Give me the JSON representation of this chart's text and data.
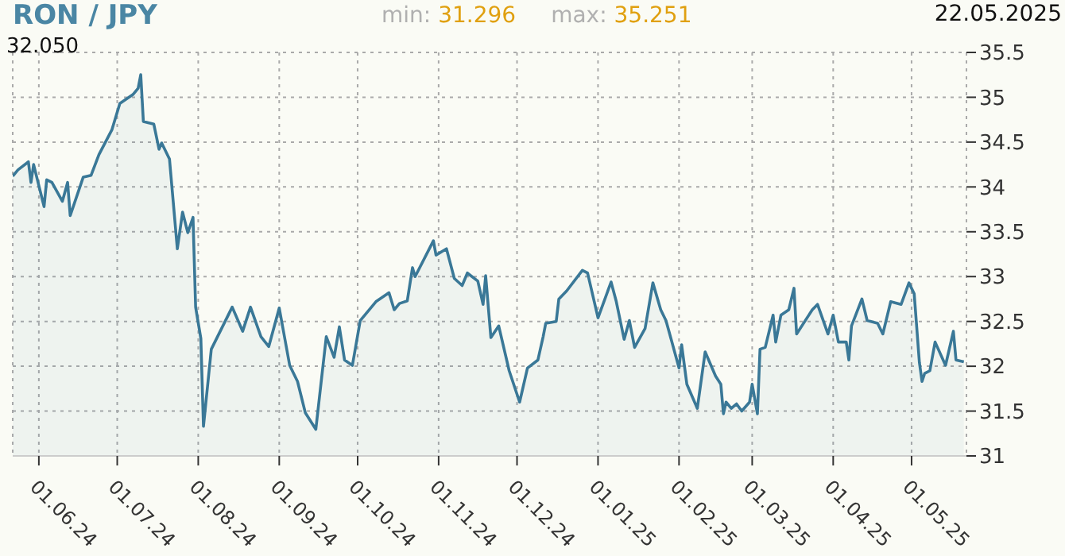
{
  "chart_data": {
    "type": "area",
    "title": "RON / JPY",
    "annotations": [
      "min: 31.296",
      "max: 35.251",
      "22.05.2025",
      "32.050"
    ],
    "x": [
      "2024-05-22",
      "2024-05-24",
      "2024-05-28",
      "2024-05-29",
      "2024-05-30",
      "2024-06-03",
      "2024-06-04",
      "2024-06-06",
      "2024-06-10",
      "2024-06-12",
      "2024-06-13",
      "2024-06-18",
      "2024-06-21",
      "2024-06-24",
      "2024-06-29",
      "2024-07-02",
      "2024-07-07",
      "2024-07-09",
      "2024-07-10",
      "2024-07-11",
      "2024-07-15",
      "2024-07-17",
      "2024-07-18",
      "2024-07-21",
      "2024-07-24",
      "2024-07-26",
      "2024-07-28",
      "2024-07-30",
      "2024-07-31",
      "2024-08-02",
      "2024-08-03",
      "2024-08-06",
      "2024-08-14",
      "2024-08-18",
      "2024-08-21",
      "2024-08-25",
      "2024-08-28",
      "2024-09-01",
      "2024-09-05",
      "2024-09-08",
      "2024-09-11",
      "2024-09-15",
      "2024-09-19",
      "2024-09-22",
      "2024-09-24",
      "2024-09-26",
      "2024-09-29",
      "2024-10-02",
      "2024-10-08",
      "2024-10-13",
      "2024-10-15",
      "2024-10-17",
      "2024-10-20",
      "2024-10-22",
      "2024-10-23",
      "2024-10-30",
      "2024-10-31",
      "2024-11-04",
      "2024-11-07",
      "2024-11-10",
      "2024-11-12",
      "2024-11-16",
      "2024-11-18",
      "2024-11-19",
      "2024-11-21",
      "2024-11-24",
      "2024-11-28",
      "2024-12-02",
      "2024-12-05",
      "2024-12-09",
      "2024-12-11",
      "2024-12-12",
      "2024-12-16",
      "2024-12-17",
      "2024-12-20",
      "2024-12-26",
      "2024-12-28",
      "2025-01-01",
      "2025-01-06",
      "2025-01-08",
      "2025-01-11",
      "2025-01-13",
      "2025-01-15",
      "2025-01-19",
      "2025-01-22",
      "2025-01-25",
      "2025-01-27",
      "2025-01-29",
      "2025-02-01",
      "2025-02-02",
      "2025-02-04",
      "2025-02-08",
      "2025-02-11",
      "2025-02-15",
      "2025-02-17",
      "2025-02-18",
      "2025-02-19",
      "2025-02-21",
      "2025-02-23",
      "2025-02-25",
      "2025-02-28",
      "2025-03-01",
      "2025-03-03",
      "2025-03-04",
      "2025-03-06",
      "2025-03-09",
      "2025-03-10",
      "2025-03-12",
      "2025-03-15",
      "2025-03-17",
      "2025-03-18",
      "2025-03-24",
      "2025-03-26",
      "2025-03-30",
      "2025-04-01",
      "2025-04-03",
      "2025-04-06",
      "2025-04-07",
      "2025-04-08",
      "2025-04-12",
      "2025-04-14",
      "2025-04-18",
      "2025-04-20",
      "2025-04-23",
      "2025-04-27",
      "2025-04-30",
      "2025-05-02",
      "2025-05-04",
      "2025-05-05",
      "2025-05-06",
      "2025-05-08",
      "2025-05-10",
      "2025-05-14",
      "2025-05-17",
      "2025-05-18",
      "2025-05-21"
    ],
    "series": [
      {
        "color": "#3a7897",
        "values": [
          34.12,
          34.19,
          34.28,
          34.05,
          34.25,
          33.78,
          34.08,
          34.05,
          33.84,
          34.05,
          33.68,
          34.11,
          34.13,
          34.36,
          34.64,
          34.93,
          35.03,
          35.1,
          35.251,
          34.73,
          34.7,
          34.42,
          34.49,
          34.31,
          33.31,
          33.72,
          33.49,
          33.66,
          32.66,
          32.31,
          31.33,
          32.19,
          32.66,
          32.39,
          32.66,
          32.33,
          32.22,
          32.65,
          32.01,
          31.83,
          31.48,
          31.296,
          32.33,
          32.1,
          32.44,
          32.07,
          32.01,
          32.51,
          32.72,
          32.82,
          32.63,
          32.7,
          32.73,
          33.1,
          33.0,
          33.4,
          33.24,
          33.31,
          32.98,
          32.9,
          33.04,
          32.95,
          32.69,
          33.01,
          32.32,
          32.45,
          31.95,
          31.6,
          31.98,
          32.07,
          32.33,
          32.48,
          32.5,
          32.75,
          32.84,
          33.07,
          33.04,
          32.54,
          32.94,
          32.72,
          32.3,
          32.51,
          32.21,
          32.42,
          32.93,
          32.63,
          32.51,
          32.3,
          31.98,
          32.24,
          31.8,
          31.53,
          32.16,
          31.89,
          31.8,
          31.47,
          31.6,
          31.53,
          31.58,
          31.5,
          31.6,
          31.8,
          31.47,
          32.19,
          32.21,
          32.57,
          32.27,
          32.57,
          32.63,
          32.87,
          32.36,
          32.63,
          32.69,
          32.36,
          32.57,
          32.27,
          32.27,
          32.07,
          32.45,
          32.75,
          32.51,
          32.48,
          32.36,
          32.72,
          32.69,
          32.93,
          32.81,
          32.04,
          31.83,
          31.92,
          31.95,
          32.27,
          32.01,
          32.39,
          32.07,
          32.05
        ]
      }
    ],
    "xlim": [
      "2024-05-22",
      "2025-05-22"
    ],
    "xticks": [
      {
        "value": "2024-06-01",
        "label": "01.06.24"
      },
      {
        "value": "2024-07-01",
        "label": "01.07.24"
      },
      {
        "value": "2024-08-01",
        "label": "01.08.24"
      },
      {
        "value": "2024-09-01",
        "label": "01.09.24"
      },
      {
        "value": "2024-10-01",
        "label": "01.10.24"
      },
      {
        "value": "2024-11-01",
        "label": "01.11.24"
      },
      {
        "value": "2024-12-01",
        "label": "01.12.24"
      },
      {
        "value": "2025-01-01",
        "label": "01.01.25"
      },
      {
        "value": "2025-02-01",
        "label": "01.02.25"
      },
      {
        "value": "2025-03-01",
        "label": "01.03.25"
      },
      {
        "value": "2025-04-01",
        "label": "01.04.25"
      },
      {
        "value": "2025-05-01",
        "label": "01.05.25"
      }
    ],
    "ylim": [
      31,
      35.5
    ],
    "yticks": [
      31,
      31.5,
      32,
      32.5,
      33,
      33.5,
      34,
      34.5,
      35,
      35.5
    ],
    "grid": true
  }
}
